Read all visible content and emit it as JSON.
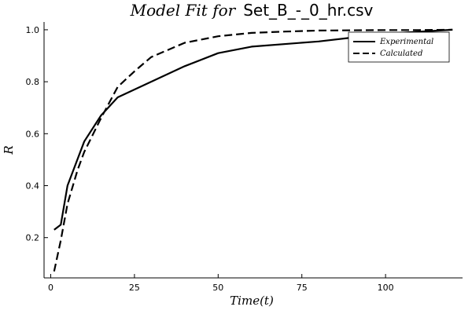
{
  "chart_data": {
    "type": "line",
    "title": {
      "math": "Model Fit for",
      "file": "Set_B_-_0_hr.csv"
    },
    "xlabel": "Time(t)",
    "ylabel": "R",
    "xlim": [
      -2,
      123
    ],
    "ylim": [
      0.045,
      1.03
    ],
    "x_ticks": [
      0,
      25,
      50,
      75,
      100
    ],
    "x_tick_labels": [
      "0",
      "25",
      "50",
      "75",
      "100"
    ],
    "y_ticks": [
      0.2,
      0.4,
      0.6,
      0.8,
      1.0
    ],
    "y_tick_labels": [
      "0.2",
      "0.4",
      "0.6",
      "0.8",
      "1.0"
    ],
    "grid": false,
    "legend_position": "top-right",
    "series": [
      {
        "name": "Experimental",
        "style": "solid",
        "color": "#000000",
        "x": [
          1,
          3,
          5,
          10,
          15,
          20,
          30,
          40,
          50,
          60,
          80,
          90,
          100,
          120
        ],
        "y": [
          0.23,
          0.25,
          0.4,
          0.57,
          0.67,
          0.74,
          0.8,
          0.86,
          0.91,
          0.935,
          0.955,
          0.97,
          0.985,
          1.0
        ]
      },
      {
        "name": "Calculated",
        "style": "dashed",
        "color": "#000000",
        "x": [
          1,
          3,
          5,
          8,
          10,
          15,
          20,
          25,
          30,
          40,
          50,
          60,
          70,
          80,
          90,
          100,
          110,
          120
        ],
        "y": [
          0.07,
          0.19,
          0.33,
          0.46,
          0.53,
          0.66,
          0.78,
          0.84,
          0.895,
          0.95,
          0.975,
          0.988,
          0.993,
          0.997,
          0.998,
          0.999,
          0.999,
          1.0
        ]
      }
    ]
  }
}
